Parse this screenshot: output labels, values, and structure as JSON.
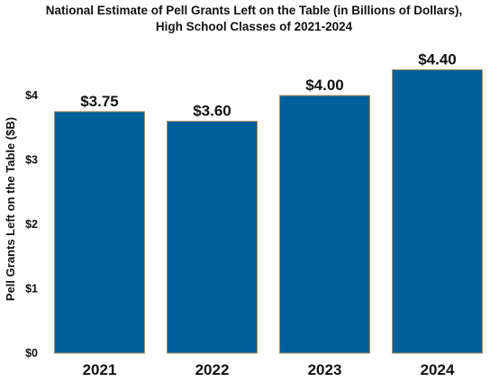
{
  "chart_data": {
    "type": "bar",
    "title_lines": [
      "National Estimate of Pell Grants Left on the Table (in Billions of Dollars),",
      "High School Classes of 2021-2024"
    ],
    "xlabel": "",
    "ylabel": "Pell Grants Left on the Table ($B)",
    "categories": [
      "2021",
      "2022",
      "2023",
      "2024"
    ],
    "values": [
      3.75,
      3.6,
      4.0,
      4.4
    ],
    "data_labels": [
      "$3.75",
      "$3.60",
      "$4.00",
      "$4.40"
    ],
    "ylim": [
      0,
      4.5
    ],
    "yticks": [
      0,
      1,
      2,
      3,
      4
    ],
    "ytick_labels": [
      "$0",
      "$1",
      "$2",
      "$3",
      "$4"
    ],
    "grid": false,
    "legend": "none",
    "colors": {
      "bar": "#005e9a",
      "bar_edge": "#b08d57"
    }
  }
}
